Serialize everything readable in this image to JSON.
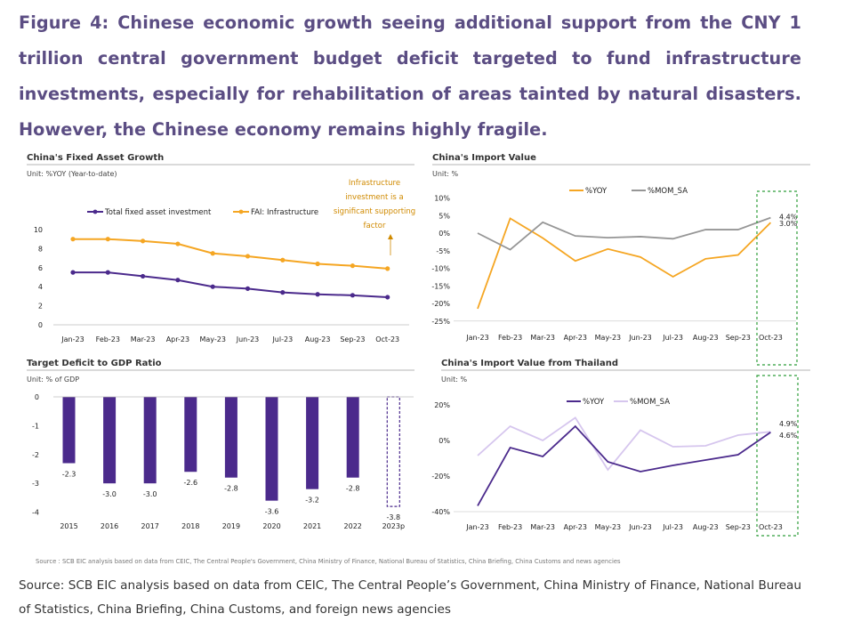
{
  "figure_title": "Figure 4: Chinese economic growth seeing additional support from the CNY 1 trillion central government budget deficit targeted to fund infrastructure investments, especially for rehabilitation of areas tainted by natural disasters. However, the Chinese economy remains highly fragile.",
  "small_source": "Source : SCB EIC analysis based on data from CEIC, The Central People's Government, China Ministry of Finance, National Bureau of Statistics, China Briefing, China Customs and news agencies",
  "footer_source": "Source:  SCB EIC analysis based on data from CEIC, The Central People’s Government, China Ministry of Finance, National Bureau of Statistics, China Briefing, China Customs, and foreign news agencies",
  "colors": {
    "title": "#5b4d83",
    "purple": "#4b2a8c",
    "orange": "#f5a623",
    "gray": "#969696",
    "lilac": "#d6c6ee",
    "green": "#2e9e3a",
    "note": "#d08a00"
  },
  "chart_data": [
    {
      "id": "fai",
      "type": "line",
      "title": "China's Fixed Asset Growth",
      "unit": "Unit: %YOY (Year-to-date)",
      "categories": [
        "Jan-23",
        "Feb-23",
        "Mar-23",
        "Apr-23",
        "May-23",
        "Jun-23",
        "Jul-23",
        "Aug-23",
        "Sep-23",
        "Oct-23"
      ],
      "ylim": [
        0,
        10
      ],
      "yticks": [
        "0",
        "2",
        "4",
        "6",
        "8",
        "10"
      ],
      "series": [
        {
          "name": "Total fixed asset investment",
          "color": "#4b2a8c",
          "values": [
            5.5,
            5.5,
            5.1,
            4.7,
            4.0,
            3.8,
            3.4,
            3.2,
            3.1,
            2.9
          ]
        },
        {
          "name": "FAI: Infrastructure",
          "color": "#f5a623",
          "values": [
            9.0,
            9.0,
            8.8,
            8.5,
            7.5,
            7.2,
            6.8,
            6.4,
            6.2,
            5.9
          ]
        }
      ],
      "annotation": [
        "Infrastructure",
        "investment is a",
        "significant supporting",
        "factor"
      ]
    },
    {
      "id": "import",
      "type": "line",
      "title": "China's Import Value",
      "unit": "Unit: %",
      "categories": [
        "Jan-23",
        "Feb-23",
        "Mar-23",
        "Apr-23",
        "May-23",
        "Jun-23",
        "Jul-23",
        "Aug-23",
        "Sep-23",
        "Oct-23"
      ],
      "ylim": [
        -25,
        10
      ],
      "yticks": [
        "-25%",
        "-20%",
        "-15%",
        "-10%",
        "-5%",
        "0%",
        "5%",
        "10%"
      ],
      "series": [
        {
          "name": "%YOY",
          "color": "#f5a623",
          "values": [
            -21.5,
            4.2,
            -1.4,
            -7.9,
            -4.5,
            -6.8,
            -12.4,
            -7.3,
            -6.2,
            3.0
          ]
        },
        {
          "name": "%MOM_SA",
          "color": "#969696",
          "values": [
            0.0,
            -4.7,
            3.1,
            -0.8,
            -1.3,
            -1.0,
            -1.6,
            1.0,
            1.0,
            4.4
          ]
        }
      ],
      "end_labels": [
        "4.4%",
        "3.0%"
      ]
    },
    {
      "id": "deficit",
      "type": "bar",
      "title": "Target Deficit to GDP Ratio",
      "unit": "Unit: % of GDP",
      "categories": [
        "2015",
        "2016",
        "2017",
        "2018",
        "2019",
        "2020",
        "2021",
        "2022",
        "2023p"
      ],
      "values": [
        -2.3,
        -3.0,
        -3.0,
        -2.6,
        -2.8,
        -3.6,
        -3.2,
        -2.8,
        -3.8
      ],
      "labels": [
        "-2.3",
        "-3.0",
        "-3.0",
        "-2.6",
        "-2.8",
        "-3.6",
        "-3.2",
        "-2.8",
        "-3.8"
      ],
      "ylim": [
        -4,
        0
      ],
      "yticks": [
        "-4",
        "-3",
        "-2",
        "-1",
        "0"
      ]
    },
    {
      "id": "thai",
      "type": "line",
      "title": "China's Import Value from Thailand",
      "unit": "Unit: %",
      "categories": [
        "Jan-23",
        "Feb-23",
        "Mar-23",
        "Apr-23",
        "May-23",
        "Jun-23",
        "Jul-23",
        "Aug-23",
        "Sep-23",
        "Oct-23"
      ],
      "ylim": [
        -40,
        20
      ],
      "yticks": [
        "-40%",
        "-20%",
        "0%",
        "20%"
      ],
      "series": [
        {
          "name": "%YOY",
          "color": "#4b2a8c",
          "values": [
            -36.7,
            -4.0,
            -9.0,
            8.0,
            -12.0,
            -17.5,
            -14.0,
            -11.0,
            -8.0,
            4.6
          ]
        },
        {
          "name": "%MOM_SA",
          "color": "#d6c6ee",
          "values": [
            -8.5,
            8.0,
            0.0,
            12.8,
            -16.5,
            5.8,
            -3.5,
            -3.0,
            3.0,
            4.9
          ]
        }
      ],
      "end_labels": [
        "4.9%",
        "4.6%"
      ]
    }
  ]
}
